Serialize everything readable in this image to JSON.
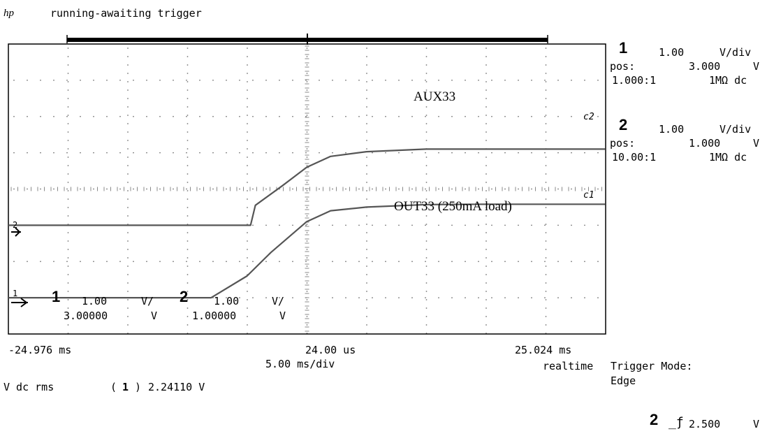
{
  "header": {
    "logo": "hp",
    "status": "running-awaiting trigger"
  },
  "channels": [
    {
      "num": "1",
      "scale": "1.00",
      "unit": "V/div",
      "pos_label": "pos:",
      "pos_value": "3.000",
      "pos_unit": "V",
      "probe": "1.000:1",
      "coupling": "1MΩ dc"
    },
    {
      "num": "2",
      "scale": "1.00",
      "unit": "V/div",
      "pos_label": "pos:",
      "pos_value": "1.000",
      "pos_unit": "V",
      "probe": "10.00:1",
      "coupling": "1MΩ dc"
    }
  ],
  "readout": {
    "ch1_num": "1",
    "ch1_scale": "1.00",
    "ch1_unit": "V/",
    "ch1_offset": "3.00000",
    "ch1_offset_unit": "V",
    "ch2_num": "2",
    "ch2_scale": "1.00",
    "ch2_unit": "V/",
    "ch2_offset": "1.00000",
    "ch2_offset_unit": "V"
  },
  "timebase": {
    "left": "-24.976 ms",
    "center": "24.00 us",
    "right": "25.024 ms",
    "per_div": "5.00 ms/div",
    "mode": "realtime"
  },
  "measurement": {
    "label": "V dc rms",
    "channel": "1",
    "value": "2.24110 V"
  },
  "trigger": {
    "mode_label": "Trigger Mode:",
    "mode_value": "Edge",
    "channel": "2",
    "edge_symbol": "_ƒ",
    "level": "2.500",
    "level_unit": "V"
  },
  "markers": {
    "ch1": "1",
    "ch2": "2",
    "c1": "c1",
    "c2": "c2"
  },
  "colors": {
    "trace": "#555555",
    "background": "#ffffff",
    "grid": "#888888"
  },
  "chart_data": {
    "type": "line",
    "title": "",
    "x_unit": "ms",
    "xlim": [
      -24.976,
      25.024
    ],
    "series": [
      {
        "name": "AUX33",
        "channel": "2",
        "x": [
          -25.0,
          -8.0,
          -5.0,
          -3.0,
          0.0,
          2.0,
          5.0,
          10.0,
          15.0,
          25.0
        ],
        "y": [
          1.0,
          1.0,
          1.6,
          2.25,
          3.1,
          3.4,
          3.5,
          3.57,
          3.58,
          3.58
        ]
      },
      {
        "name": "OUT33 (250mA load)",
        "channel": "1",
        "x": [
          -25.0,
          -4.7,
          -4.3,
          -2.0,
          0.0,
          2.0,
          5.0,
          10.0,
          15.0,
          25.0
        ],
        "y": [
          3.0,
          3.0,
          3.55,
          4.1,
          4.6,
          4.9,
          5.03,
          5.1,
          5.1,
          5.1
        ]
      }
    ]
  }
}
